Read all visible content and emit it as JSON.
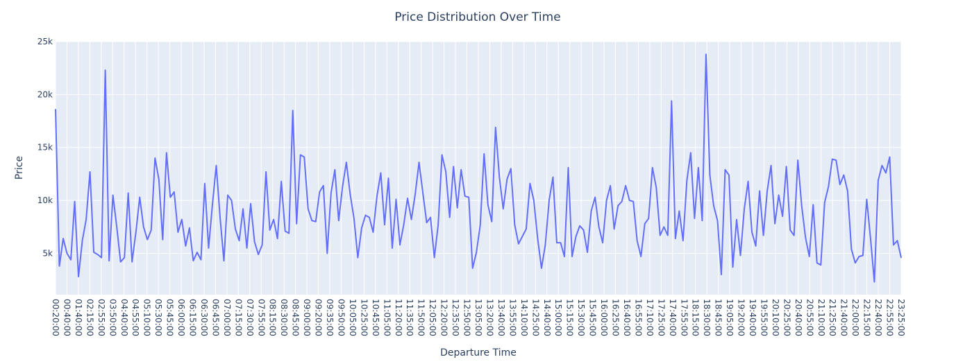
{
  "chart_data": {
    "type": "line",
    "title": "Price Distribution Over Time",
    "xlabel": "Departure Time",
    "ylabel": "Price",
    "ylim": [
      1100,
      25000
    ],
    "y_ticks": [
      5000,
      10000,
      15000,
      20000,
      25000
    ],
    "y_tick_labels": [
      "5k",
      "10k",
      "15k",
      "20k",
      "25k"
    ],
    "x_tick_labels": [
      "00:20:00",
      "00:40:00",
      "01:40:00",
      "02:15:00",
      "02:55:00",
      "03:50:00",
      "04:40:00",
      "04:55:00",
      "05:10:00",
      "05:30:00",
      "05:45:00",
      "06:00:00",
      "06:15:00",
      "06:30:00",
      "06:45:00",
      "07:00:00",
      "07:15:00",
      "07:30:00",
      "07:55:00",
      "08:15:00",
      "08:30:00",
      "08:45:00",
      "09:00:00",
      "09:20:00",
      "09:35:00",
      "09:50:00",
      "10:05:00",
      "10:25:00",
      "10:45:00",
      "11:05:00",
      "11:20:00",
      "11:35:00",
      "11:50:00",
      "12:05:00",
      "12:20:00",
      "12:35:00",
      "12:50:00",
      "13:05:00",
      "13:20:00",
      "13:40:00",
      "13:55:00",
      "14:10:00",
      "14:25:00",
      "14:40:00",
      "15:00:00",
      "15:15:00",
      "15:30:00",
      "15:45:00",
      "16:00:00",
      "16:25:00",
      "16:40:00",
      "16:55:00",
      "17:10:00",
      "17:25:00",
      "17:40:00",
      "17:55:00",
      "18:15:00",
      "18:30:00",
      "18:45:00",
      "19:05:00",
      "19:20:00",
      "19:40:00",
      "19:55:00",
      "20:10:00",
      "20:25:00",
      "20:40:00",
      "20:55:00",
      "21:10:00",
      "21:25:00",
      "21:40:00",
      "22:00:00",
      "22:15:00",
      "22:40:00",
      "22:55:00",
      "23:25:00"
    ],
    "series": [
      {
        "color": "#636efa",
        "values": [
          18600,
          3800,
          6400,
          5000,
          4400,
          9900,
          2800,
          6200,
          8200,
          12700,
          5100,
          4900,
          4600,
          22300,
          4300,
          10500,
          7500,
          4200,
          4600,
          10700,
          4200,
          7000,
          10300,
          7500,
          6300,
          7200,
          14000,
          12000,
          6300,
          14500,
          10300,
          10800,
          7000,
          8200,
          5700,
          7400,
          4300,
          5100,
          4400,
          11600,
          5500,
          9600,
          13300,
          8400,
          4300,
          10500,
          10000,
          7300,
          6200,
          9200,
          5500,
          9700,
          6100,
          4900,
          5800,
          12700,
          7200,
          8200,
          6400,
          11800,
          7100,
          6900,
          18500,
          7800,
          14300,
          14100,
          9200,
          8100,
          8000,
          10800,
          11400,
          5000,
          10700,
          12900,
          8100,
          11300,
          13600,
          10600,
          8300,
          4600,
          7400,
          8600,
          8400,
          7000,
          10400,
          12600,
          7700,
          12100,
          5500,
          10100,
          5800,
          7700,
          10200,
          8200,
          10600,
          13600,
          10700,
          7900,
          8400,
          4600,
          7700,
          14300,
          12700,
          8400,
          13200,
          9300,
          12900,
          10400,
          10300,
          3600,
          5100,
          7700,
          14400,
          9600,
          8000,
          16900,
          12200,
          9200,
          12000,
          13000,
          7700,
          5900,
          6600,
          7300,
          11600,
          10000,
          6400,
          3600,
          5800,
          10000,
          12200,
          6000,
          6000,
          4700,
          13100,
          4700,
          6600,
          7600,
          7200,
          5100,
          9000,
          10300,
          7500,
          6000,
          10000,
          11400,
          7300,
          9500,
          9900,
          11400,
          10000,
          9900,
          6200,
          4700,
          7800,
          8300,
          13100,
          11200,
          6700,
          7500,
          6700,
          19400,
          6400,
          9000,
          6200,
          11900,
          14500,
          8300,
          13100,
          8100,
          23800,
          12400,
          9500,
          8100,
          3000,
          12900,
          12400,
          3700,
          8200,
          4800,
          9200,
          11800,
          7000,
          5700,
          10900,
          6700,
          10900,
          13300,
          7800,
          10500,
          8500,
          13200,
          7200,
          6700,
          13800,
          9500,
          6500,
          4700,
          9600,
          4100,
          3900,
          9800,
          11300,
          13900,
          13800,
          11500,
          12400,
          10900,
          5400,
          4100,
          4700,
          4800,
          10100,
          6400,
          2300,
          11900,
          13300,
          12600,
          14100,
          5800,
          6200,
          4600
        ]
      }
    ]
  }
}
